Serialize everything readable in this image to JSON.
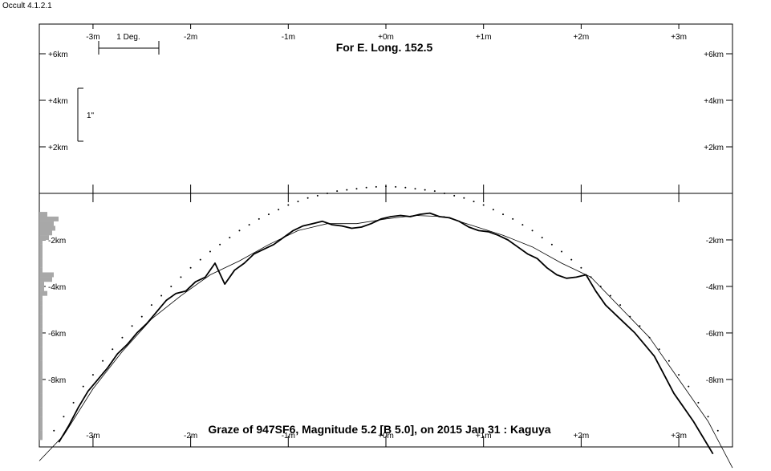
{
  "window": {
    "app_version": "Occult 4.1.2.1"
  },
  "chart_data": {
    "type": "line",
    "title": "For E. Long. 152.5",
    "caption": "Graze of  947SF6, Magnitude 5.2 [B 5.0],  on 2015 Jan 31  :  Kaguya",
    "x_axis": {
      "unit": "minutes of arc",
      "range": [
        -3.55,
        3.55
      ],
      "ticks": [
        -3,
        -2,
        -1,
        0,
        1,
        2,
        3
      ],
      "tick_labels": [
        "-3m",
        "-2m",
        "-1m",
        "+0m",
        "+1m",
        "+2m",
        "+3m"
      ]
    },
    "upper_panel": {
      "y_unit": "km",
      "y_ticks": [
        6,
        4,
        2
      ],
      "y_tick_labels": [
        "+6km",
        "+4km",
        "+2km"
      ],
      "scale_bar_label": "1 Deg.",
      "arcsec_bar_label": "1\""
    },
    "lower_panel": {
      "y_unit": "km",
      "y_ticks": [
        -2,
        -4,
        -6,
        -8
      ],
      "y_tick_labels": [
        "-2km",
        "-4km",
        "-6km",
        "-8km"
      ],
      "ylim": [
        -10.9,
        0.0
      ]
    },
    "series": [
      {
        "role": "kaguya-limb-profile",
        "x": [
          -3.35,
          -3.25,
          -3.15,
          -3.05,
          -2.95,
          -2.85,
          -2.75,
          -2.65,
          -2.55,
          -2.45,
          -2.35,
          -2.25,
          -2.15,
          -2.05,
          -1.95,
          -1.85,
          -1.75,
          -1.65,
          -1.55,
          -1.45,
          -1.35,
          -1.25,
          -1.15,
          -1.05,
          -0.95,
          -0.85,
          -0.75,
          -0.65,
          -0.55,
          -0.45,
          -0.35,
          -0.25,
          -0.15,
          -0.05,
          0.05,
          0.15,
          0.25,
          0.35,
          0.45,
          0.55,
          0.65,
          0.75,
          0.85,
          0.95,
          1.05,
          1.15,
          1.25,
          1.35,
          1.45,
          1.55,
          1.65,
          1.75,
          1.85,
          1.95,
          2.05,
          2.15,
          2.25,
          2.35,
          2.45,
          2.55,
          2.65,
          2.75,
          2.85,
          2.95,
          3.05,
          3.15,
          3.25,
          3.35
        ],
        "y": [
          -10.7,
          -10.0,
          -9.2,
          -8.5,
          -8.0,
          -7.5,
          -6.9,
          -6.5,
          -6.0,
          -5.6,
          -5.1,
          -4.6,
          -4.3,
          -4.2,
          -3.8,
          -3.6,
          -3.0,
          -3.9,
          -3.3,
          -3.0,
          -2.6,
          -2.4,
          -2.2,
          -1.9,
          -1.6,
          -1.4,
          -1.3,
          -1.2,
          -1.35,
          -1.4,
          -1.5,
          -1.45,
          -1.3,
          -1.1,
          -1.0,
          -0.95,
          -1.0,
          -0.9,
          -0.85,
          -1.0,
          -1.05,
          -1.2,
          -1.45,
          -1.6,
          -1.65,
          -1.8,
          -2.0,
          -2.3,
          -2.6,
          -2.8,
          -3.2,
          -3.5,
          -3.65,
          -3.6,
          -3.5,
          -4.2,
          -4.8,
          -5.2,
          -5.6,
          -6.0,
          -6.5,
          -7.0,
          -7.8,
          -8.6,
          -9.2,
          -9.8,
          -10.5,
          -11.2
        ]
      },
      {
        "role": "smoothed-profile",
        "x": [
          -3.55,
          -3.3,
          -3.0,
          -2.7,
          -2.4,
          -2.1,
          -1.8,
          -1.5,
          -1.2,
          -0.9,
          -0.6,
          -0.3,
          0.0,
          0.3,
          0.6,
          0.9,
          1.2,
          1.5,
          1.8,
          2.1,
          2.4,
          2.7,
          3.0,
          3.3,
          3.55
        ],
        "y": [
          -11.5,
          -10.4,
          -8.4,
          -6.8,
          -5.4,
          -4.4,
          -3.5,
          -2.9,
          -2.2,
          -1.6,
          -1.3,
          -1.3,
          -1.1,
          -0.95,
          -1.0,
          -1.4,
          -1.8,
          -2.3,
          -3.0,
          -3.6,
          -4.9,
          -6.2,
          -8.0,
          -9.8,
          -11.8
        ]
      },
      {
        "role": "mean-limb-dots",
        "x": [
          -3.4,
          -3.3,
          -3.2,
          -3.1,
          -3.0,
          -2.9,
          -2.8,
          -2.7,
          -2.6,
          -2.5,
          -2.4,
          -2.3,
          -2.2,
          -2.1,
          -2.0,
          -1.9,
          -1.8,
          -1.7,
          -1.6,
          -1.5,
          -1.4,
          -1.3,
          -1.2,
          -1.1,
          -1.0,
          -0.9,
          -0.8,
          -0.7,
          -0.6,
          -0.5,
          -0.4,
          -0.3,
          -0.2,
          -0.1,
          0.0,
          0.1,
          0.2,
          0.3,
          0.4,
          0.5,
          0.6,
          0.7,
          0.8,
          0.9,
          1.0,
          1.1,
          1.2,
          1.3,
          1.4,
          1.5,
          1.6,
          1.7,
          1.8,
          1.9,
          2.0,
          2.1,
          2.2,
          2.3,
          2.4,
          2.5,
          2.6,
          2.7,
          2.8,
          2.9,
          3.0,
          3.1,
          3.2,
          3.3,
          3.4
        ],
        "y": [
          -10.2,
          -9.6,
          -9.0,
          -8.3,
          -7.8,
          -7.2,
          -6.7,
          -6.2,
          -5.7,
          -5.3,
          -4.8,
          -4.4,
          -4.0,
          -3.6,
          -3.2,
          -2.85,
          -2.5,
          -2.2,
          -1.9,
          -1.6,
          -1.35,
          -1.1,
          -0.9,
          -0.7,
          -0.5,
          -0.35,
          -0.2,
          -0.1,
          0.0,
          0.1,
          0.15,
          0.2,
          0.25,
          0.28,
          0.3,
          0.28,
          0.25,
          0.2,
          0.15,
          0.1,
          0.0,
          -0.1,
          -0.2,
          -0.35,
          -0.5,
          -0.7,
          -0.9,
          -1.1,
          -1.35,
          -1.6,
          -1.9,
          -2.2,
          -2.5,
          -2.85,
          -3.2,
          -3.6,
          -4.0,
          -4.4,
          -4.8,
          -5.3,
          -5.7,
          -6.2,
          -6.7,
          -7.2,
          -7.8,
          -8.3,
          -9.0,
          -9.6,
          -10.2
        ]
      }
    ],
    "histogram": {
      "y_bins": [
        -0.9,
        -1.1,
        -1.3,
        -1.5,
        -1.7,
        -1.9,
        -2.1,
        -2.3,
        -2.5,
        -2.7,
        -2.9,
        -3.1,
        -3.3,
        -3.5,
        -3.7,
        -3.9,
        -4.1,
        -4.3,
        -4.5,
        -4.7,
        -4.9,
        -5.1,
        -5.3,
        -5.5,
        -5.7,
        -5.9,
        -6.1,
        -6.3,
        -6.5,
        -6.7,
        -6.9,
        -7.1,
        -7.3,
        -7.5,
        -7.7,
        -7.9,
        -8.1,
        -8.3,
        -8.5,
        -8.7,
        -8.9,
        -9.1,
        -9.3,
        -9.5,
        -9.7,
        -9.9,
        -10.1,
        -10.3,
        -10.5
      ],
      "counts": [
        10,
        24,
        18,
        20,
        16,
        12,
        4,
        4,
        4,
        4,
        4,
        4,
        4,
        18,
        16,
        6,
        6,
        10,
        4,
        4,
        4,
        4,
        4,
        4,
        4,
        4,
        4,
        4,
        4,
        4,
        4,
        4,
        4,
        4,
        4,
        4,
        4,
        4,
        4,
        4,
        4,
        4,
        4,
        4,
        4,
        4,
        4,
        4,
        4
      ]
    }
  }
}
